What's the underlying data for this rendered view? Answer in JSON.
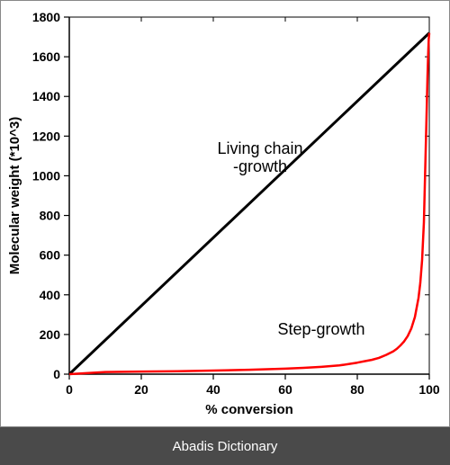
{
  "chart": {
    "type": "line",
    "xlabel": "% conversion",
    "ylabel": "Molecular weight (*10^3)",
    "xlim": [
      0,
      100
    ],
    "ylim": [
      0,
      1800
    ],
    "xticks": [
      0,
      20,
      40,
      60,
      80,
      100
    ],
    "yticks": [
      0,
      200,
      400,
      600,
      800,
      1000,
      1200,
      1400,
      1600,
      1800
    ],
    "background_color": "#ffffff",
    "axis_color": "#000000",
    "label_fontsize": 15,
    "tick_fontsize": 14,
    "series": [
      {
        "name": "Living chain-growth",
        "color": "#000000",
        "line_width": 3,
        "points": [
          [
            0,
            0
          ],
          [
            100,
            1720
          ]
        ],
        "annotation": {
          "text1": "Living chain",
          "text2": "-growth",
          "x": 53,
          "y": 1110
        }
      },
      {
        "name": "Step-growth",
        "color": "#ff0000",
        "line_width": 2.5,
        "points": [
          [
            0,
            0
          ],
          [
            10,
            11
          ],
          [
            20,
            13
          ],
          [
            30,
            15
          ],
          [
            40,
            18
          ],
          [
            50,
            22
          ],
          [
            55,
            25
          ],
          [
            60,
            28
          ],
          [
            65,
            32
          ],
          [
            70,
            37
          ],
          [
            75,
            44
          ],
          [
            78,
            52
          ],
          [
            80,
            58
          ],
          [
            82,
            65
          ],
          [
            84,
            72
          ],
          [
            86,
            82
          ],
          [
            88,
            97
          ],
          [
            90,
            115
          ],
          [
            91,
            128
          ],
          [
            92,
            145
          ],
          [
            93,
            165
          ],
          [
            94,
            192
          ],
          [
            95,
            230
          ],
          [
            96,
            288
          ],
          [
            97,
            384
          ],
          [
            97.5,
            460
          ],
          [
            98,
            575
          ],
          [
            98.5,
            765
          ],
          [
            99,
            1130
          ],
          [
            99.3,
            1350
          ],
          [
            99.5,
            1500
          ],
          [
            99.7,
            1620
          ],
          [
            99.85,
            1690
          ],
          [
            100,
            1720
          ]
        ],
        "annotation": {
          "text1": "Step-growth",
          "text2": "",
          "x": 70,
          "y": 200
        }
      }
    ]
  },
  "footer": {
    "text": "Abadis Dictionary",
    "bg": "#4a4a4a",
    "fg": "#ffffff"
  }
}
